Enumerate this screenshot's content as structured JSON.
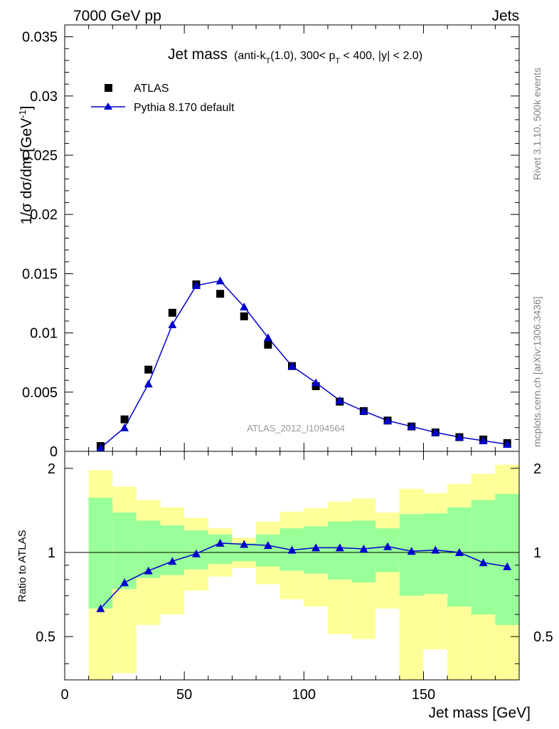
{
  "header": {
    "left": "7000 GeV pp",
    "right": "Jets"
  },
  "side_labels": {
    "rivet": "Rivet 3.1.10,  500k events",
    "mcplots": "mcplots.cern.ch [arXiv:1306.3436]"
  },
  "main_plot": {
    "title_main": "Jet mass",
    "title_paren_prefix": "(anti-k",
    "title_paren_sub1": "T",
    "title_paren_mid": "(1.0), 300< p",
    "title_paren_sub2": "T",
    "title_paren_suffix": " < 400, |y| < 2.0)",
    "ylabel": "1/σ dσ/dm [GeV",
    "ylabel_sup": "-1",
    "ylabel_close": "]",
    "watermark": "ATLAS_2012_I1094564",
    "legend": [
      {
        "label": "ATLAS"
      },
      {
        "label": "Pythia 8.170 default"
      }
    ],
    "y_ticks": [
      "0",
      "0.005",
      "0.01",
      "0.015",
      "0.02",
      "0.025",
      "0.03",
      "0.035"
    ]
  },
  "ratio_plot": {
    "ylabel": "Ratio to ATLAS",
    "y_ticks": [
      "0.5",
      "1",
      "2"
    ],
    "x_ticks": [
      "0",
      "50",
      "100",
      "150"
    ],
    "xlabel": "Jet mass [GeV]"
  },
  "colors": {
    "data": "#000000",
    "mc": "#0000cc",
    "band_inner": "#99ff99",
    "band_outer": "#ffff99",
    "side_text": "#808080",
    "watermark": "#999999"
  },
  "chart_data": [
    {
      "type": "scatter",
      "panel": "main",
      "xlabel": "Jet mass [GeV]",
      "ylabel": "1/σ dσ/dm [GeV^-1]",
      "xlim": [
        0,
        190
      ],
      "ylim": [
        0,
        0.036
      ],
      "x": [
        15,
        25,
        35,
        45,
        55,
        65,
        75,
        85,
        95,
        105,
        115,
        125,
        135,
        145,
        155,
        165,
        175,
        185
      ],
      "series": [
        {
          "name": "ATLAS",
          "marker": "square",
          "values": [
            0.00045,
            0.0027,
            0.0069,
            0.0117,
            0.0141,
            0.0133,
            0.0114,
            0.009,
            0.0072,
            0.0055,
            0.0042,
            0.0034,
            0.0026,
            0.0021,
            0.0016,
            0.0012,
            0.001,
            0.0007
          ]
        },
        {
          "name": "Pythia 8.170 default",
          "marker": "triangle",
          "line": true,
          "values": [
            0.0003,
            0.002,
            0.0057,
            0.0107,
            0.014,
            0.0144,
            0.0122,
            0.0096,
            0.0072,
            0.0058,
            0.0043,
            0.0034,
            0.0026,
            0.0021,
            0.0016,
            0.0012,
            0.0009,
            0.0006
          ]
        }
      ]
    },
    {
      "type": "line",
      "panel": "ratio",
      "xlabel": "Jet mass [GeV]",
      "ylabel": "Ratio to ATLAS",
      "xlim": [
        0,
        190
      ],
      "ylim": [
        0.35,
        2.3
      ],
      "yscale": "log",
      "bin_edges": [
        10,
        20,
        30,
        40,
        50,
        60,
        70,
        80,
        90,
        100,
        110,
        120,
        130,
        140,
        150,
        160,
        170,
        180,
        190
      ],
      "band_outer": {
        "low": [
          0.35,
          0.37,
          0.55,
          0.6,
          0.73,
          0.82,
          0.88,
          0.77,
          0.68,
          0.64,
          0.51,
          0.49,
          0.63,
          0.35,
          0.45,
          0.35,
          0.35,
          0.35
        ],
        "high": [
          1.97,
          1.72,
          1.54,
          1.45,
          1.33,
          1.22,
          1.13,
          1.29,
          1.4,
          1.44,
          1.52,
          1.56,
          1.39,
          1.69,
          1.63,
          1.76,
          1.91,
          2.06
        ]
      },
      "band_inner": {
        "low": [
          0.63,
          0.74,
          0.81,
          0.83,
          0.87,
          0.91,
          0.93,
          0.89,
          0.86,
          0.84,
          0.8,
          0.78,
          0.85,
          0.7,
          0.71,
          0.64,
          0.6,
          0.55
        ],
        "high": [
          1.57,
          1.39,
          1.3,
          1.25,
          1.2,
          1.16,
          1.08,
          1.16,
          1.22,
          1.24,
          1.29,
          1.3,
          1.22,
          1.37,
          1.38,
          1.45,
          1.54,
          1.62
        ]
      },
      "x": [
        15,
        25,
        35,
        45,
        55,
        65,
        75,
        85,
        95,
        105,
        115,
        125,
        135,
        145,
        155,
        165,
        175,
        185
      ],
      "series": [
        {
          "name": "Pythia 8.170 default",
          "values": [
            0.63,
            0.78,
            0.86,
            0.93,
            0.99,
            1.08,
            1.07,
            1.06,
            1.02,
            1.04,
            1.04,
            1.03,
            1.05,
            1.01,
            1.02,
            1.0,
            0.92,
            0.89
          ]
        }
      ]
    }
  ]
}
